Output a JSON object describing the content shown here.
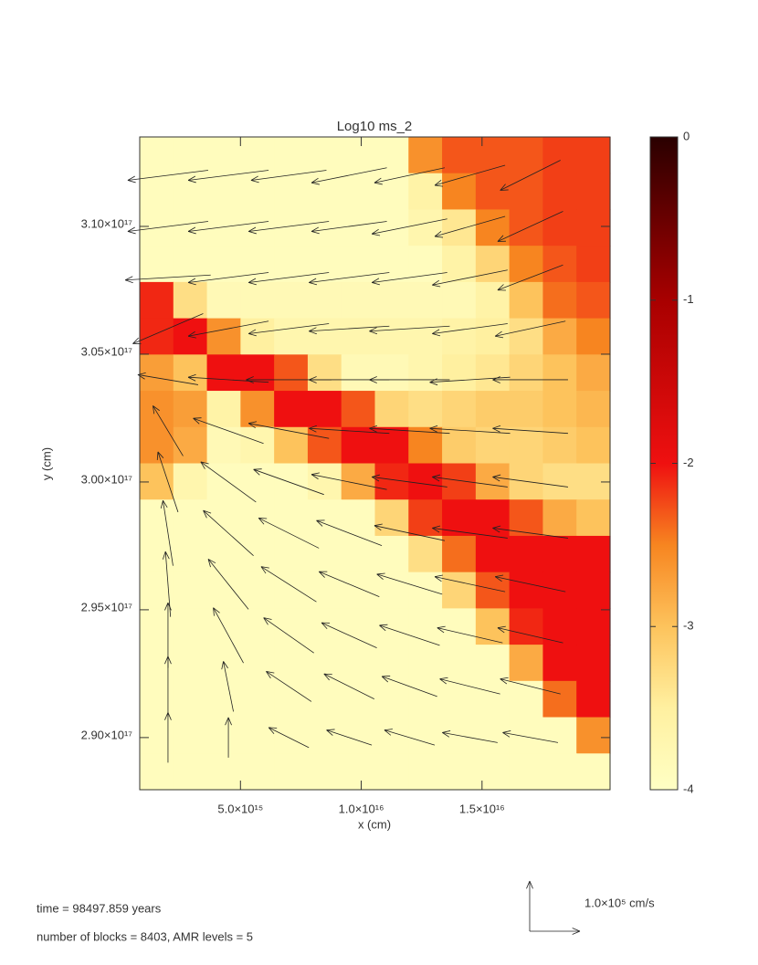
{
  "chart_data": {
    "type": "vector-heatmap",
    "title": "Log10 ms_2",
    "xlabel": "x (cm)",
    "ylabel": "y (cm)",
    "xlim": [
      830000000000000,
      20300000000000000
    ],
    "ylim": [
      287960000000000000,
      313500000000000000
    ],
    "xticks": [
      {
        "value": 5000000000000000,
        "label": "5.0×10¹⁵"
      },
      {
        "value": 10000000000000000,
        "label": "1.0×10¹⁶"
      },
      {
        "value": 15000000000000000,
        "label": "1.5×10¹⁶"
      }
    ],
    "yticks": [
      {
        "value": 290000000000000000,
        "label": "2.90×10¹⁷"
      },
      {
        "value": 295000000000000000,
        "label": "2.95×10¹⁷"
      },
      {
        "value": 300000000000000000,
        "label": "3.00×10¹⁷"
      },
      {
        "value": 305000000000000000,
        "label": "3.05×10¹⁷"
      },
      {
        "value": 310000000000000000,
        "label": "3.10×10¹⁷"
      }
    ],
    "colorbar": {
      "lim": [
        -4,
        0
      ],
      "ticks": [
        0,
        -1,
        -2,
        -3,
        -4
      ]
    },
    "colormap": [
      {
        "value": -4,
        "color": "#ffffc4"
      },
      {
        "value": -3.5,
        "color": "#fff0a0"
      },
      {
        "value": -3,
        "color": "#fdc35c"
      },
      {
        "value": -2.5,
        "color": "#f78520"
      },
      {
        "value": -2,
        "color": "#ef1010"
      },
      {
        "value": -1,
        "color": "#a80000"
      },
      {
        "value": 0,
        "color": "#2a0000"
      }
    ],
    "field": {
      "values": [
        [
          -3.9,
          -3.9,
          -3.9,
          -3.9,
          -3.9,
          -3.9,
          -3.9,
          -3.9,
          -2.6,
          -2.3,
          -2.3,
          -2.3,
          -2.2,
          -2.2
        ],
        [
          -3.9,
          -3.9,
          -3.9,
          -3.9,
          -3.9,
          -3.9,
          -3.9,
          -3.9,
          -3.6,
          -2.5,
          -2.3,
          -2.3,
          -2.2,
          -2.2
        ],
        [
          -3.9,
          -3.9,
          -3.9,
          -3.9,
          -3.9,
          -3.9,
          -3.9,
          -3.9,
          -3.7,
          -3.4,
          -2.5,
          -2.3,
          -2.2,
          -2.2
        ],
        [
          -3.9,
          -3.9,
          -3.9,
          -3.9,
          -3.9,
          -3.9,
          -3.9,
          -3.9,
          -3.9,
          -3.6,
          -3.2,
          -2.5,
          -2.3,
          -2.2
        ],
        [
          -2.1,
          -3.3,
          -3.8,
          -3.8,
          -3.8,
          -3.8,
          -3.8,
          -3.8,
          -3.8,
          -3.8,
          -3.6,
          -3.0,
          -2.4,
          -2.3
        ],
        [
          -2.1,
          -2.0,
          -2.6,
          -3.5,
          -3.7,
          -3.7,
          -3.7,
          -3.7,
          -3.7,
          -3.6,
          -3.5,
          -3.3,
          -2.8,
          -2.5
        ],
        [
          -2.7,
          -3.0,
          -2.0,
          -2.0,
          -2.3,
          -3.3,
          -3.8,
          -3.8,
          -3.7,
          -3.5,
          -3.4,
          -3.2,
          -3.0,
          -2.8
        ],
        [
          -2.6,
          -2.7,
          -3.6,
          -2.6,
          -2.0,
          -2.0,
          -2.3,
          -3.2,
          -3.3,
          -3.2,
          -3.1,
          -3.1,
          -3.0,
          -2.9
        ],
        [
          -2.6,
          -2.8,
          -3.8,
          -3.7,
          -3.0,
          -2.3,
          -2.0,
          -2.0,
          -2.5,
          -3.1,
          -3.2,
          -3.2,
          -3.1,
          -3.0
        ],
        [
          -3.0,
          -3.7,
          -3.9,
          -3.9,
          -3.9,
          -3.7,
          -2.8,
          -2.1,
          -2.0,
          -2.2,
          -2.8,
          -3.2,
          -3.3,
          -3.3
        ],
        [
          -3.9,
          -3.9,
          -3.9,
          -3.9,
          -3.9,
          -3.9,
          -3.9,
          -3.2,
          -2.2,
          -2.0,
          -2.0,
          -2.3,
          -2.8,
          -3.0
        ],
        [
          -3.9,
          -3.9,
          -3.9,
          -3.9,
          -3.9,
          -3.9,
          -3.9,
          -3.9,
          -3.3,
          -2.4,
          -2.0,
          -2.0,
          -2.0,
          -2.0
        ],
        [
          -3.9,
          -3.9,
          -3.9,
          -3.9,
          -3.9,
          -3.9,
          -3.9,
          -3.9,
          -3.9,
          -3.2,
          -2.3,
          -2.0,
          -2.0,
          -2.0
        ],
        [
          -3.9,
          -3.9,
          -3.9,
          -3.9,
          -3.9,
          -3.9,
          -3.9,
          -3.9,
          -3.9,
          -3.9,
          -3.0,
          -2.1,
          -2.0,
          -2.0
        ],
        [
          -3.9,
          -3.9,
          -3.9,
          -3.9,
          -3.9,
          -3.9,
          -3.9,
          -3.9,
          -3.9,
          -3.9,
          -3.9,
          -2.8,
          -2.0,
          -2.0
        ],
        [
          -3.9,
          -3.9,
          -3.9,
          -3.9,
          -3.9,
          -3.9,
          -3.9,
          -3.9,
          -3.9,
          -3.9,
          -3.9,
          -3.9,
          -2.4,
          -2.0
        ],
        [
          -3.9,
          -3.9,
          -3.9,
          -3.9,
          -3.9,
          -3.9,
          -3.9,
          -3.9,
          -3.9,
          -3.9,
          -3.9,
          -3.9,
          -3.9,
          -2.6
        ],
        [
          -3.9,
          -3.9,
          -3.9,
          -3.9,
          -3.9,
          -3.9,
          -3.9,
          -3.9,
          -3.9,
          -3.9,
          -3.9,
          -3.9,
          -3.9,
          -3.9
        ]
      ]
    },
    "vectors": {
      "x": [
        2000000000000000,
        4500000000000000,
        7000000000000000,
        9500000000000000,
        12000000000000000,
        14500000000000000,
        17000000000000000
      ],
      "y": [
        312000000000000000,
        310000000000000000,
        308000000000000000,
        306000000000000000,
        304000000000000000,
        302000000000000000,
        300000000000000000,
        298000000000000000,
        296000000000000000,
        294000000000000000,
        292000000000000000,
        290000000000000000
      ],
      "u": [
        [
          -160000,
          -160000,
          -150000,
          -150000,
          -140000,
          -140000,
          -120000
        ],
        [
          -160000,
          -160000,
          -160000,
          -150000,
          -150000,
          -140000,
          -130000
        ],
        [
          -170000,
          -160000,
          -160000,
          -160000,
          -150000,
          -150000,
          -130000
        ],
        [
          -140000,
          -160000,
          -160000,
          -160000,
          -160000,
          -150000,
          -140000
        ],
        [
          -120000,
          -160000,
          -170000,
          -160000,
          -160000,
          -160000,
          -150000
        ],
        [
          -60000,
          -140000,
          -160000,
          -160000,
          -160000,
          -160000,
          -150000
        ],
        [
          -40000,
          -110000,
          -140000,
          -150000,
          -150000,
          -150000,
          -150000
        ],
        [
          -20000,
          -100000,
          -120000,
          -130000,
          -140000,
          -150000,
          -150000
        ],
        [
          -10000,
          -80000,
          -110000,
          -120000,
          -130000,
          -140000,
          -140000
        ],
        [
          0,
          -60000,
          -100000,
          -110000,
          -120000,
          -130000,
          -130000
        ],
        [
          0,
          -20000,
          -90000,
          -100000,
          -110000,
          -120000,
          -120000
        ],
        [
          0,
          0,
          -80000,
          -90000,
          -100000,
          -110000,
          -110000
        ]
      ],
      "v": [
        [
          -20000,
          -20000,
          -20000,
          -30000,
          -30000,
          -40000,
          -60000
        ],
        [
          -20000,
          -20000,
          -20000,
          -20000,
          -30000,
          -40000,
          -60000
        ],
        [
          -10000,
          -20000,
          -20000,
          -20000,
          -20000,
          -30000,
          -50000
        ],
        [
          -60000,
          -30000,
          -20000,
          -10000,
          -10000,
          -20000,
          -30000
        ],
        [
          20000,
          10000,
          0,
          0,
          0,
          -10000,
          0
        ],
        [
          100000,
          50000,
          30000,
          10000,
          10000,
          10000,
          10000
        ],
        [
          120000,
          80000,
          50000,
          30000,
          20000,
          20000,
          20000
        ],
        [
          130000,
          90000,
          60000,
          50000,
          30000,
          20000,
          20000
        ],
        [
          130000,
          100000,
          70000,
          50000,
          40000,
          30000,
          30000
        ],
        [
          130000,
          110000,
          70000,
          50000,
          40000,
          30000,
          30000
        ],
        [
          120000,
          100000,
          60000,
          50000,
          40000,
          30000,
          30000
        ],
        [
          100000,
          80000,
          40000,
          30000,
          30000,
          20000,
          20000
        ]
      ],
      "reference": {
        "value": 100000,
        "label": "1.0×10⁵ cm/s"
      }
    },
    "footer": [
      "time =  98497.859 years",
      "number of blocks =    8403, AMR levels =     5"
    ]
  }
}
